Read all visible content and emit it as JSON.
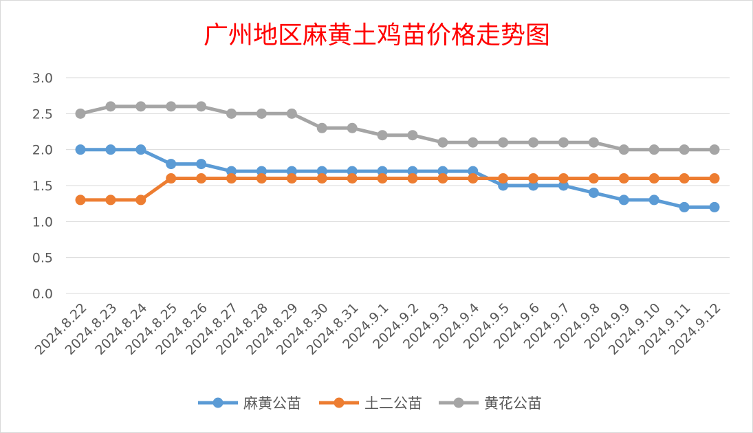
{
  "chart_data": {
    "type": "line",
    "title": "广州地区麻黄土鸡苗价格走势图",
    "xlabel": "",
    "ylabel": "",
    "ylim": [
      0,
      3
    ],
    "yticks": [
      "0.0",
      "0.5",
      "1.0",
      "1.5",
      "2.0",
      "2.5",
      "3.0"
    ],
    "grid": true,
    "legend_position": "bottom",
    "categories": [
      "2024.8.22",
      "2024.8.23",
      "2024.8.24",
      "2024.8.25",
      "2024.8.26",
      "2024.8.27",
      "2024.8.28",
      "2024.8.29",
      "2024.8.30",
      "2024.8.31",
      "2024.9.1",
      "2024.9.2",
      "2024.9.3",
      "2024.9.4",
      "2024.9.5",
      "2024.9.6",
      "2024.9.7",
      "2024.9.8",
      "2024.9.9",
      "2024.9.10",
      "2024.9.11",
      "2024.9.12"
    ],
    "series": [
      {
        "name": "麻黄公苗",
        "color": "#5b9bd5",
        "values": [
          2.0,
          2.0,
          2.0,
          1.8,
          1.8,
          1.7,
          1.7,
          1.7,
          1.7,
          1.7,
          1.7,
          1.7,
          1.7,
          1.7,
          1.5,
          1.5,
          1.5,
          1.4,
          1.3,
          1.3,
          1.2,
          1.2
        ]
      },
      {
        "name": "土二公苗",
        "color": "#ed7d31",
        "values": [
          1.3,
          1.3,
          1.3,
          1.6,
          1.6,
          1.6,
          1.6,
          1.6,
          1.6,
          1.6,
          1.6,
          1.6,
          1.6,
          1.6,
          1.6,
          1.6,
          1.6,
          1.6,
          1.6,
          1.6,
          1.6,
          1.6
        ]
      },
      {
        "name": "黄花公苗",
        "color": "#a5a5a5",
        "values": [
          2.5,
          2.6,
          2.6,
          2.6,
          2.6,
          2.5,
          2.5,
          2.5,
          2.3,
          2.3,
          2.2,
          2.2,
          2.1,
          2.1,
          2.1,
          2.1,
          2.1,
          2.1,
          2.0,
          2.0,
          2.0,
          2.0
        ]
      }
    ]
  }
}
